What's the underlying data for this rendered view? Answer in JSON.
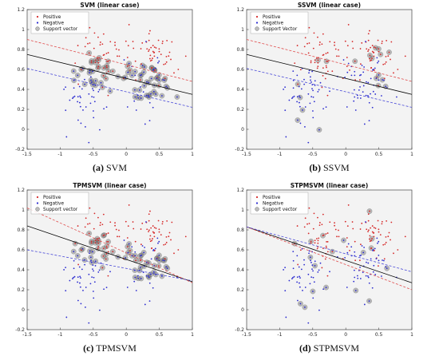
{
  "chart_data": [
    {
      "type": "scatter",
      "title": "SVM (linear case)",
      "caption_letter": "(a)",
      "caption_text": "SVM",
      "xlim": [
        -1.5,
        1
      ],
      "ylim": [
        -0.2,
        1.2
      ],
      "xticks": [
        "-1.5",
        "-1",
        "-0.5",
        "0",
        "0.5",
        "1"
      ],
      "yticks": [
        "-0.2",
        "0",
        "0.2",
        "0.4",
        "0.6",
        "0.8",
        "1",
        "1.2"
      ],
      "legend": [
        "Positive",
        "Negative",
        "Support vector"
      ],
      "legend_position": "top-left",
      "grid": false,
      "lines": [
        {
          "x": [
            -1.5,
            1
          ],
          "y": [
            0.75,
            0.35
          ],
          "color": "#000000",
          "dash": false
        },
        {
          "x": [
            -1.5,
            1
          ],
          "y": [
            0.9,
            0.48
          ],
          "color": "#e04b4b",
          "dash": true
        },
        {
          "x": [
            -1.5,
            1
          ],
          "y": [
            0.61,
            0.22
          ],
          "color": "#4a4ad8",
          "dash": true
        }
      ],
      "support_vector_density": "high"
    },
    {
      "type": "scatter",
      "title": "SSVM (linear case)",
      "caption_letter": "(b)",
      "caption_text": "SSVM",
      "xlim": [
        -1.5,
        1
      ],
      "ylim": [
        -0.2,
        1.2
      ],
      "xticks": [
        "-1.5",
        "-1",
        "-0.5",
        "0",
        "0.5",
        "1"
      ],
      "yticks": [
        "-0.2",
        "0",
        "0.2",
        "0.4",
        "0.6",
        "0.8",
        "1",
        "1.2"
      ],
      "legend": [
        "Positive",
        "Negative",
        "Support Vector"
      ],
      "legend_position": "top-left",
      "grid": false,
      "lines": [
        {
          "x": [
            -1.5,
            1
          ],
          "y": [
            0.75,
            0.35
          ],
          "color": "#000000",
          "dash": false
        },
        {
          "x": [
            -1.5,
            1
          ],
          "y": [
            0.9,
            0.48
          ],
          "color": "#e04b4b",
          "dash": true
        },
        {
          "x": [
            -1.5,
            1
          ],
          "y": [
            0.61,
            0.22
          ],
          "color": "#4a4ad8",
          "dash": true
        }
      ],
      "support_vector_density": "low"
    },
    {
      "type": "scatter",
      "title": "TPMSVM (linear case)",
      "caption_letter": "(c)",
      "caption_text": "TPMSVM",
      "xlim": [
        -1.5,
        1
      ],
      "ylim": [
        -0.2,
        1.2
      ],
      "xticks": [
        "-1.5",
        "-1",
        "-0.5",
        "0",
        "0.5",
        "1"
      ],
      "yticks": [
        "-0.2",
        "0",
        "0.2",
        "0.4",
        "0.6",
        "0.8",
        "1",
        "1.2"
      ],
      "legend": [
        "Positive",
        "Negative",
        "Support vector"
      ],
      "legend_position": "top-left",
      "grid": false,
      "lines": [
        {
          "x": [
            -1.5,
            1
          ],
          "y": [
            0.84,
            0.28
          ],
          "color": "#000000",
          "dash": false
        },
        {
          "x": [
            -1.5,
            1
          ],
          "y": [
            1.02,
            0.27
          ],
          "color": "#e04b4b",
          "dash": true
        },
        {
          "x": [
            -1.5,
            1
          ],
          "y": [
            0.6,
            0.29
          ],
          "color": "#4a4ad8",
          "dash": true
        }
      ],
      "support_vector_density": "high"
    },
    {
      "type": "scatter",
      "title": "STPMSVM (linear case)",
      "caption_letter": "(d)",
      "caption_text": "STPMSVM",
      "xlim": [
        -1.5,
        1
      ],
      "ylim": [
        -0.2,
        1.2
      ],
      "xticks": [
        "-1.5",
        "-1",
        "-0.5",
        "0",
        "0.5",
        "1"
      ],
      "yticks": [
        "-0.2",
        "0",
        "0.2",
        "0.4",
        "0.6",
        "0.8",
        "1",
        "1.2"
      ],
      "legend": [
        "Positive",
        "Negative",
        "Support vector"
      ],
      "legend_position": "top-left",
      "grid": false,
      "lines": [
        {
          "x": [
            -1.5,
            1
          ],
          "y": [
            0.83,
            0.27
          ],
          "color": "#000000",
          "dash": false
        },
        {
          "x": [
            -1.5,
            1
          ],
          "y": [
            0.83,
            0.2
          ],
          "color": "#e04b4b",
          "dash": true
        },
        {
          "x": [
            -1.5,
            1
          ],
          "y": [
            0.83,
            0.38
          ],
          "color": "#4a4ad8",
          "dash": true
        }
      ],
      "support_vector_density": "low"
    }
  ],
  "colors": {
    "positive": "#d62a2a",
    "negative": "#2b2bd0",
    "support": "#6e6e6e",
    "axes_bg": "#f3f3f3"
  }
}
